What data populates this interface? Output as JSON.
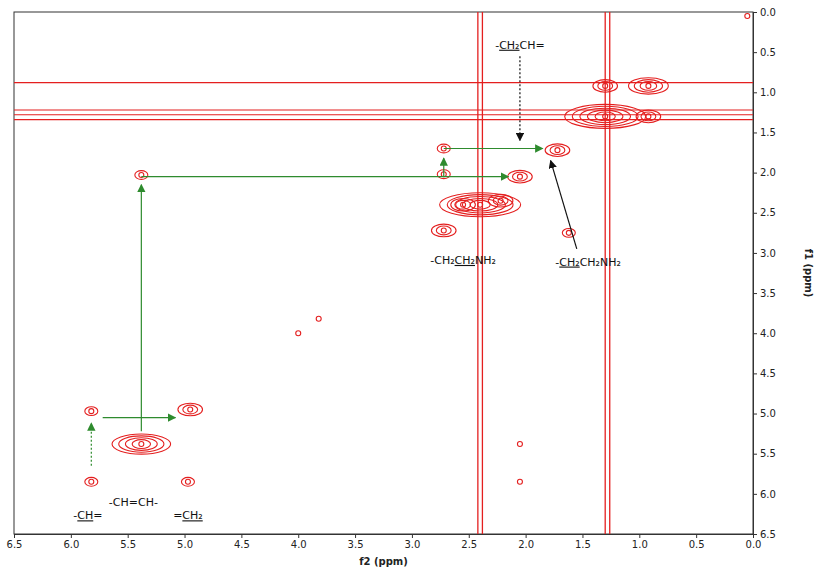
{
  "chart_data": {
    "type": "contour",
    "x_label": "f2 (ppm)",
    "y_label": "f1 (ppm)",
    "color": "#e41f1f",
    "xlim": [
      6.5,
      0
    ],
    "ylim": [
      6.5,
      0
    ],
    "xticks": [
      6.5,
      {
        "value": 6,
        "label": "6.0"
      },
      5.5,
      {
        "value": 5,
        "label": "5.0"
      },
      4.5,
      {
        "value": 4,
        "label": "4.0"
      },
      3.5,
      {
        "value": 3,
        "label": "3.0"
      },
      2.5,
      {
        "value": 2,
        "label": "2.0"
      },
      1.5,
      {
        "value": 1,
        "label": "1.0"
      },
      0.5,
      {
        "value": 0,
        "label": "0.0"
      }
    ],
    "yticks": [
      {
        "value": 0,
        "label": "0.0"
      },
      0.5,
      {
        "value": 1,
        "label": "1.0"
      },
      1.5,
      {
        "value": 2,
        "label": "2.0"
      },
      2.5,
      {
        "value": 3,
        "label": "3.0"
      },
      3.5,
      {
        "value": 4,
        "label": "4.0"
      },
      4.5,
      {
        "value": 5,
        "label": "5.0"
      },
      5.5,
      {
        "value": 6,
        "label": "6.0"
      },
      6.5
    ],
    "grid": false,
    "x": [
      5.82,
      5.82,
      4.95,
      4.97,
      5.38,
      5.38,
      2.05,
      2.05,
      2.72,
      2.72,
      2.72,
      2.05,
      1.72,
      2.4,
      1.3,
      0.92,
      1.3,
      0.92,
      1.62,
      3.82,
      4.0,
      0.05,
      2.22,
      2.55
    ],
    "y": [
      5.85,
      4.97,
      4.95,
      5.85,
      5.38,
      2.03,
      5.38,
      5.85,
      1.7,
      2.02,
      2.72,
      2.05,
      1.72,
      2.4,
      1.3,
      0.92,
      0.92,
      1.3,
      2.75,
      3.82,
      4.0,
      0.05,
      2.35,
      2.4
    ],
    "levels": [
      2,
      2,
      3,
      2,
      5,
      2,
      1,
      1,
      2,
      2,
      3,
      3,
      3,
      6,
      6,
      4,
      3,
      3,
      2,
      1,
      1,
      1,
      3,
      3
    ],
    "vertical_ridges": [
      2.42,
      2.38,
      1.3,
      1.26
    ],
    "horizontal_ridges": [
      1.22,
      1.28,
      1.34,
      0.88
    ],
    "arrows": [
      {
        "from": [
          5.82,
          5.65
        ],
        "to": [
          5.82,
          5.12
        ],
        "color": "#2e8b2e",
        "line_style": "dotted"
      },
      {
        "from": [
          5.72,
          5.05
        ],
        "to": [
          5.08,
          5.05
        ],
        "color": "#2e8b2e",
        "line_style": "solid"
      },
      {
        "from": [
          5.38,
          5.22
        ],
        "to": [
          5.38,
          2.15
        ],
        "color": "#2e8b2e",
        "line_style": "solid"
      },
      {
        "from": [
          5.38,
          2.05
        ],
        "to": [
          2.15,
          2.05
        ],
        "color": "#2e8b2e",
        "line_style": "solid"
      },
      {
        "from": [
          2.72,
          2.05
        ],
        "to": [
          2.72,
          1.82
        ],
        "color": "#2e8b2e",
        "line_style": "solid"
      },
      {
        "from": [
          2.72,
          1.7
        ],
        "to": [
          1.85,
          1.7
        ],
        "color": "#2e8b2e",
        "line_style": "solid"
      },
      {
        "from": [
          2.05,
          0.55
        ],
        "to": [
          2.05,
          1.6
        ],
        "color": "#111111",
        "line_style": "dotted"
      },
      {
        "from": [
          1.55,
          2.95
        ],
        "to": [
          1.78,
          1.85
        ],
        "color": "#111111",
        "line_style": "solid"
      }
    ],
    "annotations": [
      {
        "x": 2.05,
        "y": 0.42,
        "parts": [
          {
            "text": "-"
          },
          {
            "text": "CH₂",
            "underline": true
          },
          {
            "text": "CH="
          }
        ]
      },
      {
        "x": 2.55,
        "y": 3.1,
        "parts": [
          {
            "text": "-CH₂"
          },
          {
            "text": "CH₂",
            "underline": true
          },
          {
            "text": "NH₂"
          }
        ]
      },
      {
        "x": 1.45,
        "y": 3.12,
        "parts": [
          {
            "text": "-"
          },
          {
            "text": "CH₂",
            "underline": true
          },
          {
            "text": "CH₂NH₂"
          }
        ]
      },
      {
        "x": 5.85,
        "y": 6.28,
        "parts": [
          {
            "text": "-"
          },
          {
            "text": "CH",
            "underline": true
          },
          {
            "text": "="
          }
        ]
      },
      {
        "x": 5.45,
        "y": 6.12,
        "parts": [
          {
            "text": "-CH=CH-"
          }
        ]
      },
      {
        "x": 4.97,
        "y": 6.28,
        "parts": [
          {
            "text": "="
          },
          {
            "text": "CH₂",
            "underline": true
          }
        ]
      }
    ]
  }
}
